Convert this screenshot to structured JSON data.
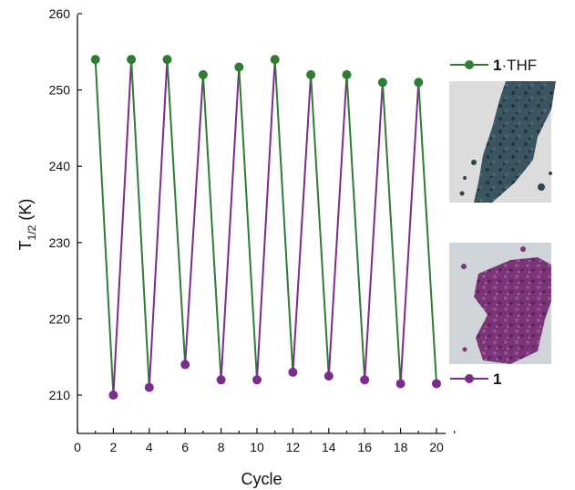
{
  "chart_data": {
    "type": "line",
    "xlabel": "Cycle",
    "ylabel_main": "T",
    "ylabel_sub": "1/2",
    "ylabel_unit": " (K)",
    "xlim": [
      0,
      21
    ],
    "ylim": [
      205,
      260
    ],
    "xticks": [
      0,
      2,
      4,
      6,
      8,
      10,
      12,
      14,
      16,
      18,
      20
    ],
    "yticks": [
      210,
      220,
      230,
      240,
      250,
      260
    ],
    "points": [
      {
        "x": 1,
        "y": 254,
        "series": "1·THF"
      },
      {
        "x": 2,
        "y": 210,
        "series": "1"
      },
      {
        "x": 3,
        "y": 254,
        "series": "1·THF"
      },
      {
        "x": 4,
        "y": 211,
        "series": "1"
      },
      {
        "x": 5,
        "y": 254,
        "series": "1·THF"
      },
      {
        "x": 6,
        "y": 214,
        "series": "1"
      },
      {
        "x": 7,
        "y": 252,
        "series": "1·THF"
      },
      {
        "x": 8,
        "y": 212,
        "series": "1"
      },
      {
        "x": 9,
        "y": 253,
        "series": "1·THF"
      },
      {
        "x": 10,
        "y": 212,
        "series": "1"
      },
      {
        "x": 11,
        "y": 254,
        "series": "1·THF"
      },
      {
        "x": 12,
        "y": 213,
        "series": "1"
      },
      {
        "x": 13,
        "y": 252,
        "series": "1·THF"
      },
      {
        "x": 14,
        "y": 212.5,
        "series": "1"
      },
      {
        "x": 15,
        "y": 252,
        "series": "1·THF"
      },
      {
        "x": 16,
        "y": 212,
        "series": "1"
      },
      {
        "x": 17,
        "y": 251,
        "series": "1·THF"
      },
      {
        "x": 18,
        "y": 211.5,
        "series": "1"
      },
      {
        "x": 19,
        "y": 251,
        "series": "1·THF"
      },
      {
        "x": 20,
        "y": 211.5,
        "series": "1"
      }
    ],
    "series": [
      {
        "name": "1·THF",
        "label_bold": "1",
        "label_rest": "·THF",
        "color": "#2e7d32"
      },
      {
        "name": "1",
        "label_bold": "1",
        "label_rest": "",
        "color": "#7b2d8b"
      }
    ],
    "legend_placement": "right",
    "grid": false
  },
  "photos": [
    {
      "name": "sample-photo-1-thf",
      "color": "#2f4650"
    },
    {
      "name": "sample-photo-1",
      "color": "#7a3577"
    }
  ]
}
